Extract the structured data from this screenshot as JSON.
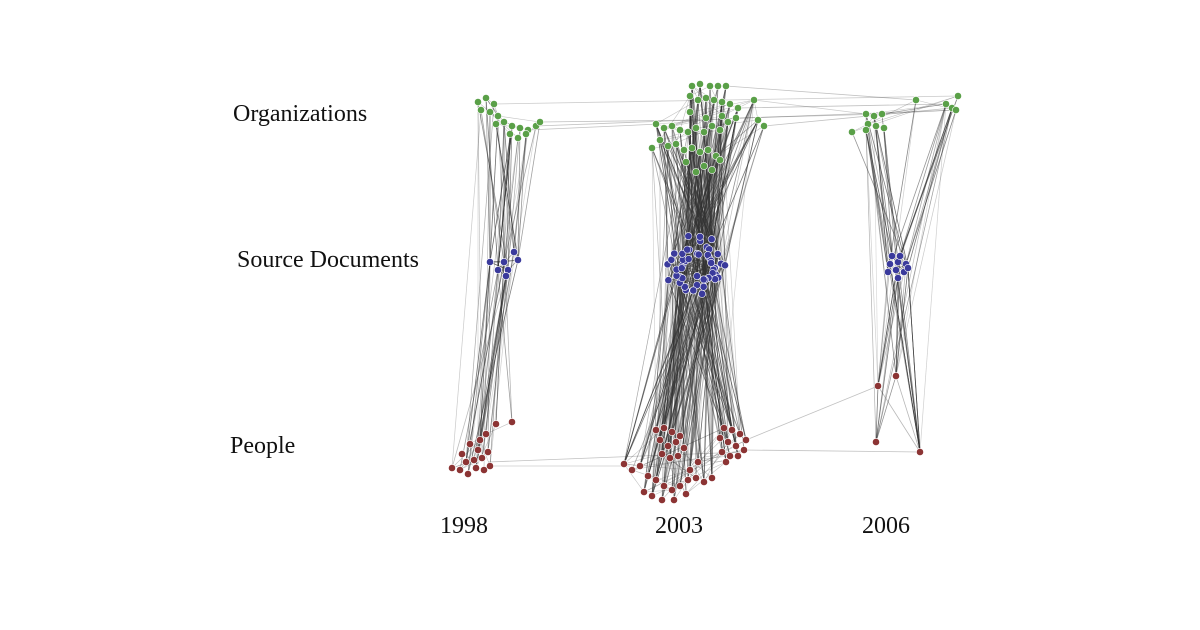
{
  "diagram": {
    "row_labels": {
      "organizations": "Organizations",
      "source_documents": "Source Documents",
      "people": "People"
    },
    "years": [
      "1998",
      "2003",
      "2006"
    ],
    "node_colors": {
      "organizations": "#5aa048",
      "source_documents": "#3a3a9c",
      "people": "#8c3434"
    },
    "edge_color": "#333333"
  }
}
